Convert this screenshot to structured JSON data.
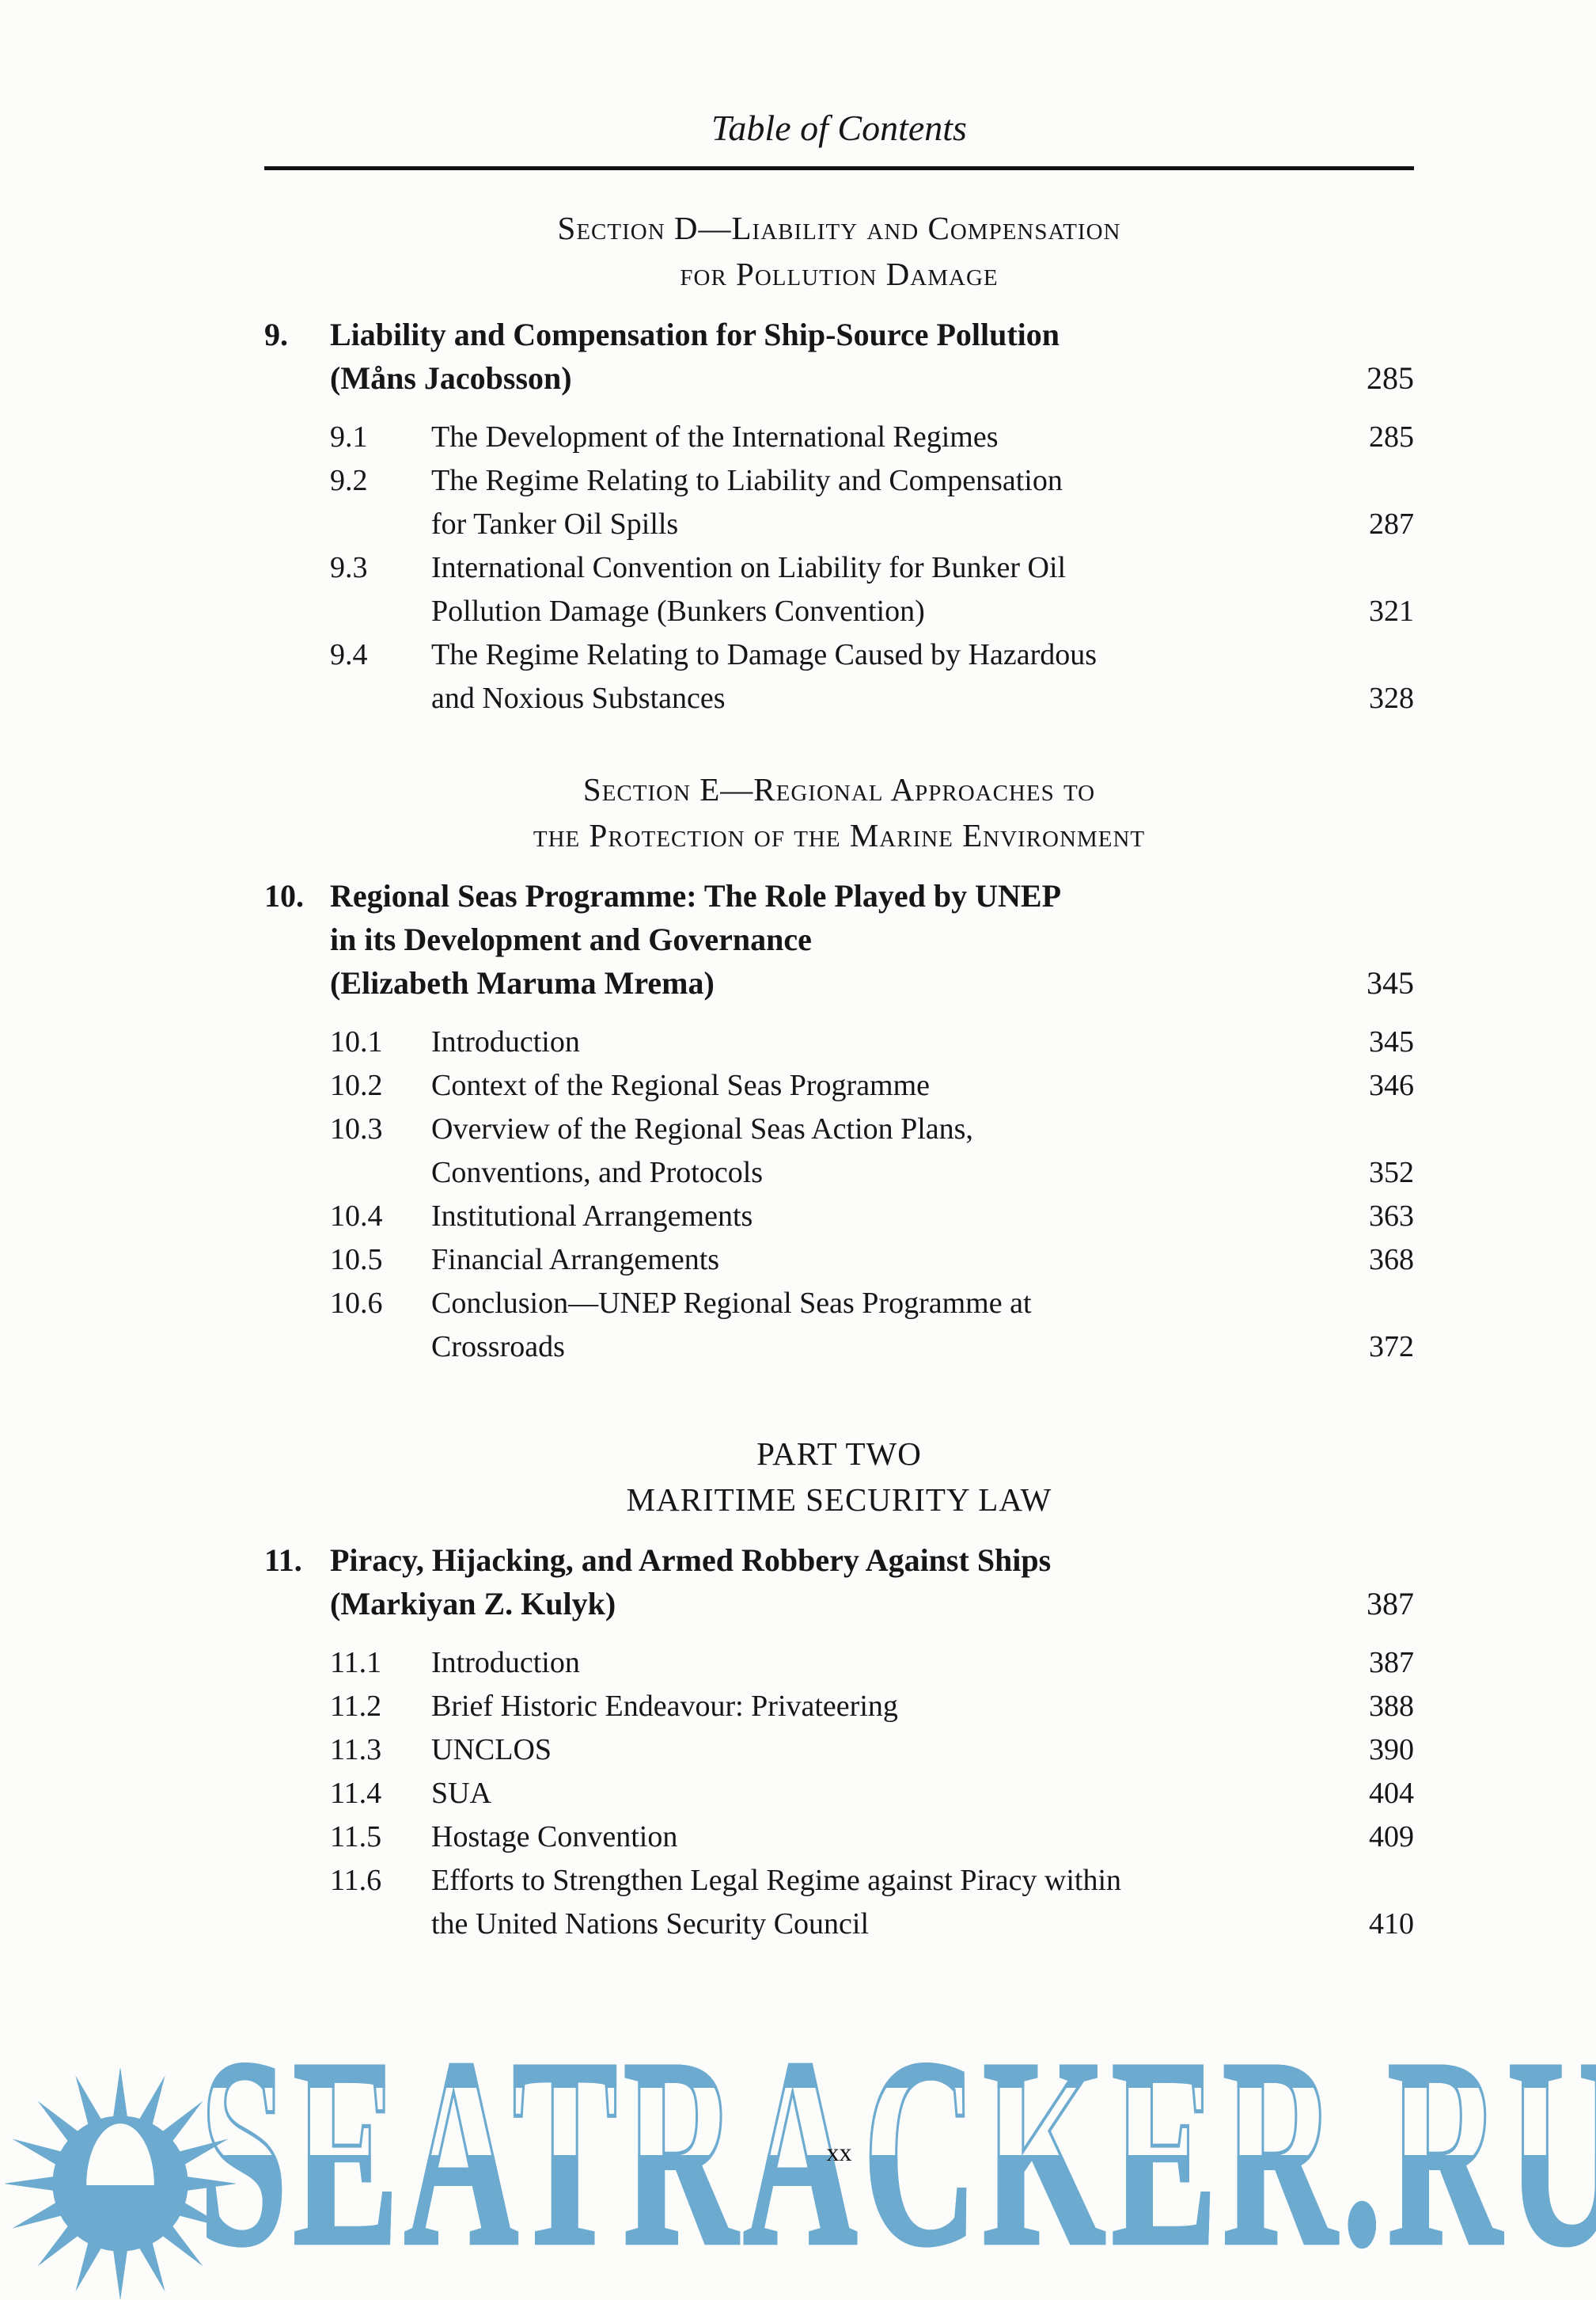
{
  "header": {
    "title": "Table of Contents"
  },
  "footer": {
    "page_number": "xx"
  },
  "watermark": {
    "text": "SEATRACKER.RU",
    "icon": "sun-logo",
    "color": "#6cabcf"
  },
  "sections": [
    {
      "style": "smallcaps",
      "heading_lines": [
        "Section D—Liability and Compensation",
        "for Pollution Damage"
      ],
      "chapters": [
        {
          "number": "9.",
          "title_lines": [
            "Liability and Compensation for Ship-Source Pollution",
            "(Måns Jacobsson)"
          ],
          "page": "285",
          "subsections": [
            {
              "number": "9.1",
              "title_lines": [
                "The Development of the International Regimes"
              ],
              "page": "285"
            },
            {
              "number": "9.2",
              "title_lines": [
                "The Regime Relating to Liability and Compensation",
                "for Tanker Oil Spills"
              ],
              "page": "287"
            },
            {
              "number": "9.3",
              "title_lines": [
                "International Convention on Liability for Bunker Oil",
                "Pollution Damage (Bunkers Convention)"
              ],
              "page": "321"
            },
            {
              "number": "9.4",
              "title_lines": [
                "The Regime Relating to Damage Caused by Hazardous",
                "and Noxious Substances"
              ],
              "page": "328"
            }
          ]
        }
      ]
    },
    {
      "style": "smallcaps",
      "heading_lines": [
        "Section E—Regional Approaches to",
        "the Protection of the Marine Environment"
      ],
      "chapters": [
        {
          "number": "10.",
          "title_lines": [
            "Regional Seas Programme: The Role Played by UNEP",
            "in its Development and Governance",
            "(Elizabeth Maruma Mrema)"
          ],
          "page": "345",
          "subsections": [
            {
              "number": "10.1",
              "title_lines": [
                "Introduction"
              ],
              "page": "345"
            },
            {
              "number": "10.2",
              "title_lines": [
                "Context of the Regional Seas Programme"
              ],
              "page": "346"
            },
            {
              "number": "10.3",
              "title_lines": [
                "Overview of the Regional Seas Action Plans,",
                "Conventions, and Protocols"
              ],
              "page": "352"
            },
            {
              "number": "10.4",
              "title_lines": [
                "Institutional Arrangements"
              ],
              "page": "363"
            },
            {
              "number": "10.5",
              "title_lines": [
                "Financial Arrangements"
              ],
              "page": "368"
            },
            {
              "number": "10.6",
              "title_lines": [
                "Conclusion—UNEP Regional Seas Programme at",
                "Crossroads"
              ],
              "page": "372"
            }
          ]
        }
      ]
    },
    {
      "style": "caps",
      "heading_lines": [
        "PART TWO",
        "MARITIME SECURITY LAW"
      ],
      "chapters": [
        {
          "number": "11.",
          "title_lines": [
            "Piracy, Hijacking, and Armed Robbery Against Ships",
            "(Markiyan Z. Kulyk)"
          ],
          "page": "387",
          "subsections": [
            {
              "number": "11.1",
              "title_lines": [
                "Introduction"
              ],
              "page": "387"
            },
            {
              "number": "11.2",
              "title_lines": [
                "Brief Historic Endeavour: Privateering"
              ],
              "page": "388"
            },
            {
              "number": "11.3",
              "title_lines": [
                "UNCLOS"
              ],
              "page": "390"
            },
            {
              "number": "11.4",
              "title_lines": [
                "SUA"
              ],
              "page": "404"
            },
            {
              "number": "11.5",
              "title_lines": [
                "Hostage Convention"
              ],
              "page": "409"
            },
            {
              "number": "11.6",
              "title_lines": [
                "Efforts to Strengthen Legal Regime against Piracy within",
                "the United Nations Security Council"
              ],
              "page": "410"
            }
          ]
        }
      ]
    }
  ]
}
